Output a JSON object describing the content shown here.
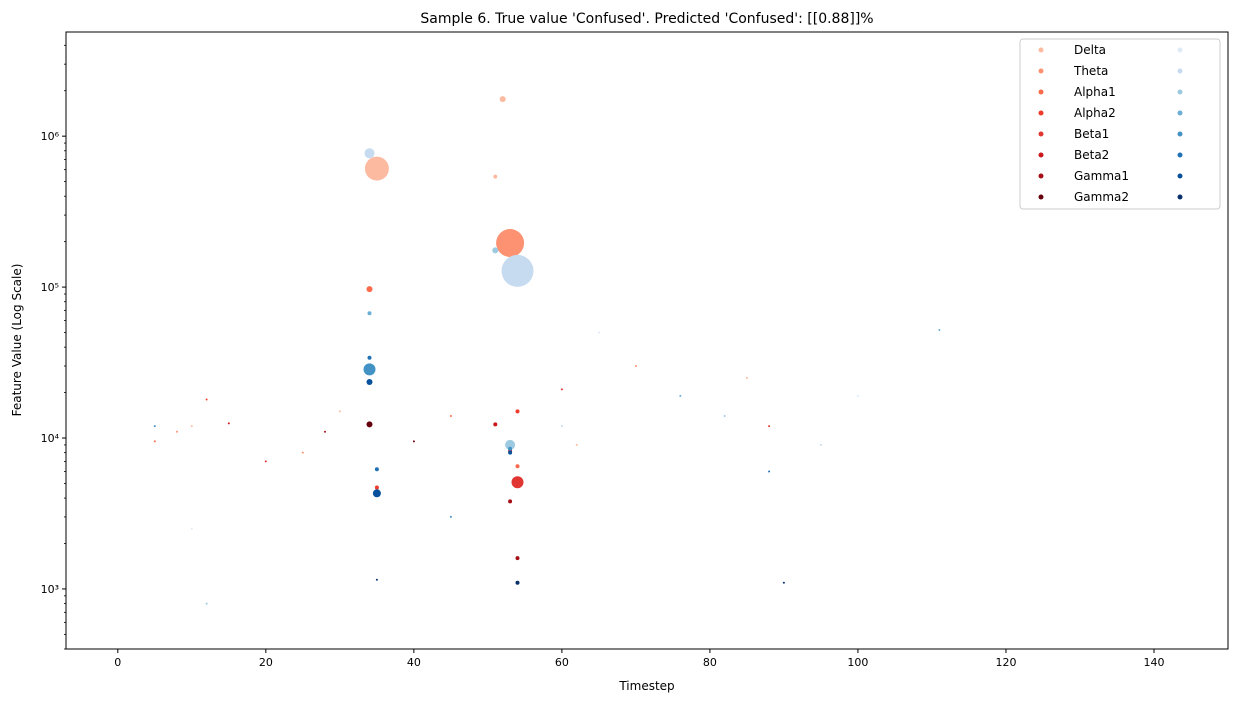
{
  "chart_data": {
    "type": "scatter",
    "title": "Sample 6. True value 'Confused'. Predicted 'Confused': [[0.88]]%",
    "xlabel": "Timestep",
    "ylabel": "Feature Value (Log Scale)",
    "x_scale": "linear",
    "y_scale": "log",
    "xlim": [
      -7,
      150
    ],
    "ylim": [
      400,
      4900000
    ],
    "x_ticks": [
      0,
      20,
      40,
      60,
      80,
      100,
      120,
      140
    ],
    "x_tick_labels": [
      "0",
      "20",
      "40",
      "60",
      "80",
      "100",
      "120",
      "140"
    ],
    "y_ticks": [
      1000,
      10000,
      100000,
      1000000
    ],
    "y_tick_labels": [
      "10³",
      "10⁴",
      "10⁵",
      "10⁶"
    ],
    "grid": false,
    "legend_position": "top-right",
    "legend_columns": 2,
    "series": [
      {
        "name": "Delta",
        "color": "#fcbba1",
        "points": [
          [
            35,
            610000,
            12
          ],
          [
            52,
            1760000,
            3
          ],
          [
            51,
            540000,
            2
          ],
          [
            10,
            12000,
            1
          ],
          [
            30,
            15000,
            1
          ],
          [
            62,
            9000,
            1
          ],
          [
            85,
            25000,
            1
          ]
        ]
      },
      {
        "name": "Theta",
        "color": "#fc9272",
        "points": [
          [
            53,
            196000,
            14
          ],
          [
            53,
            110000,
            2
          ],
          [
            8,
            11000,
            1
          ],
          [
            25,
            8000,
            1
          ],
          [
            70,
            30000,
            1
          ]
        ]
      },
      {
        "name": "Alpha1",
        "color": "#fb6a4a",
        "points": [
          [
            34,
            97000,
            3
          ],
          [
            54,
            6500,
            2
          ],
          [
            5,
            9500,
            1
          ],
          [
            45,
            14000,
            1
          ]
        ]
      },
      {
        "name": "Alpha2",
        "color": "#ef3b2c",
        "points": [
          [
            54,
            15000,
            2
          ],
          [
            35,
            4700,
            2
          ],
          [
            12,
            18000,
            1
          ],
          [
            88,
            12000,
            1
          ]
        ]
      },
      {
        "name": "Beta1",
        "color": "#e03530",
        "points": [
          [
            54,
            5100,
            6
          ],
          [
            20,
            7000,
            1
          ],
          [
            60,
            21000,
            1
          ]
        ]
      },
      {
        "name": "Beta2",
        "color": "#cb181d",
        "points": [
          [
            51,
            12300,
            2
          ],
          [
            53,
            8200,
            2
          ],
          [
            15,
            12500,
            1
          ]
        ]
      },
      {
        "name": "Gamma1",
        "color": "#a50f15",
        "points": [
          [
            53,
            3800,
            2
          ],
          [
            54,
            1600,
            2
          ],
          [
            28,
            11000,
            1
          ]
        ]
      },
      {
        "name": "Gamma2",
        "color": "#67000d",
        "points": [
          [
            34,
            12300,
            3
          ],
          [
            40,
            9500,
            1
          ]
        ]
      },
      {
        "name": "",
        "color": "#deebf7",
        "points": [
          [
            10,
            2500,
            1
          ],
          [
            65,
            50000,
            1
          ],
          [
            100,
            19000,
            1
          ]
        ]
      },
      {
        "name": "",
        "color": "#c6dbef",
        "points": [
          [
            54,
            128000,
            16
          ],
          [
            34,
            770000,
            5
          ],
          [
            60,
            12000,
            1
          ],
          [
            95,
            9000,
            1
          ]
        ]
      },
      {
        "name": "",
        "color": "#9ecae1",
        "points": [
          [
            51,
            175000,
            3
          ],
          [
            53,
            9000,
            5
          ],
          [
            12,
            800,
            1
          ],
          [
            82,
            14000,
            1
          ]
        ]
      },
      {
        "name": "",
        "color": "#6baed6",
        "points": [
          [
            34,
            67000,
            2
          ],
          [
            76,
            19000,
            1
          ],
          [
            111,
            52000,
            1
          ]
        ]
      },
      {
        "name": "",
        "color": "#4292c6",
        "points": [
          [
            34,
            28500,
            6
          ],
          [
            53,
            8500,
            2
          ],
          [
            5,
            12000,
            1
          ],
          [
            45,
            3000,
            1
          ]
        ]
      },
      {
        "name": "",
        "color": "#2171b5",
        "points": [
          [
            35,
            6200,
            2
          ],
          [
            34,
            34000,
            2
          ],
          [
            88,
            6000,
            1
          ]
        ]
      },
      {
        "name": "",
        "color": "#08519c",
        "points": [
          [
            34,
            23500,
            3
          ],
          [
            35,
            4300,
            4
          ],
          [
            53,
            8000,
            2
          ]
        ]
      },
      {
        "name": "",
        "color": "#08306b",
        "points": [
          [
            54,
            1100,
            2
          ],
          [
            35,
            1150,
            1
          ],
          [
            90,
            1100,
            1
          ]
        ]
      }
    ]
  }
}
